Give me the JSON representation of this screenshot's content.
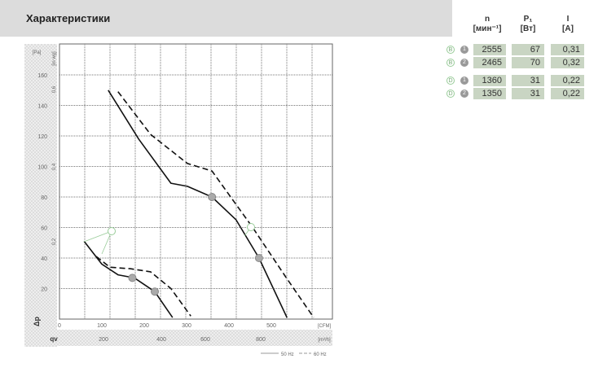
{
  "header": {
    "title": "Характеристики"
  },
  "table": {
    "columns": [
      {
        "name": "n",
        "unit": "[мин⁻¹]"
      },
      {
        "name": "P₁",
        "unit": "[Вт]"
      },
      {
        "name": "I",
        "unit": "[A]"
      }
    ],
    "rows": [
      {
        "curve": "B",
        "mode": "1",
        "n": "2555",
        "p": "67",
        "i": "0,31"
      },
      {
        "curve": "B",
        "mode": "2",
        "n": "2465",
        "p": "70",
        "i": "0,32"
      },
      {
        "curve": "D",
        "mode": "1",
        "n": "1360",
        "p": "31",
        "i": "0,22"
      },
      {
        "curve": "D",
        "mode": "2",
        "n": "1350",
        "p": "31",
        "i": "0,22"
      }
    ]
  },
  "chart_data": {
    "type": "line",
    "xlabel": "[CFM]",
    "x2label": "[m³/h]",
    "ylabel": "[Pa]",
    "y2label": "[in wg]",
    "xlim": [
      0,
      640
    ],
    "ylim": [
      0,
      180
    ],
    "xticks": [
      "0",
      "100",
      "200",
      "300",
      "400",
      "500"
    ],
    "x2ticks": [
      "200",
      "400",
      "600",
      "800"
    ],
    "yticks": [
      "20",
      "40",
      "60",
      "80",
      "100",
      "120",
      "140",
      "160"
    ],
    "y2ticks": [
      "0,2",
      "0,4",
      "0,6"
    ],
    "grid": true,
    "legend": {
      "position": "bottom-right",
      "entries": [
        "50 Hz",
        "60 Hz"
      ]
    },
    "series": [
      {
        "name": "50 Hz",
        "curve": "B",
        "points": [
          [
            115,
            150
          ],
          [
            187,
            118
          ],
          [
            263,
            89
          ],
          [
            302,
            87
          ],
          [
            360,
            80
          ],
          [
            417,
            65
          ],
          [
            471,
            40
          ],
          [
            537,
            1
          ]
        ],
        "markers": [
          [
            360,
            80
          ],
          [
            471,
            40
          ]
        ]
      },
      {
        "name": "60 Hz",
        "curve": "B",
        "points": [
          [
            138,
            149
          ],
          [
            215,
            121
          ],
          [
            302,
            102
          ],
          [
            360,
            97
          ],
          [
            456,
            60
          ],
          [
            533,
            28
          ],
          [
            600,
            1
          ]
        ]
      },
      {
        "name": "50 Hz",
        "curve": "D",
        "points": [
          [
            58,
            51
          ],
          [
            100,
            36
          ],
          [
            138,
            29
          ],
          [
            177,
            27
          ],
          [
            225,
            18
          ],
          [
            267,
            1
          ]
        ],
        "markers": [
          [
            172,
            27
          ],
          [
            225,
            18
          ]
        ]
      },
      {
        "name": "60 Hz",
        "curve": "D",
        "points": [
          [
            87,
            41
          ],
          [
            119,
            34
          ],
          [
            167,
            33
          ],
          [
            215,
            31
          ],
          [
            263,
            20
          ],
          [
            310,
            2
          ]
        ]
      }
    ],
    "annotations": [
      "B",
      "D"
    ],
    "axis_labels": [
      "Δp",
      "qv"
    ]
  }
}
